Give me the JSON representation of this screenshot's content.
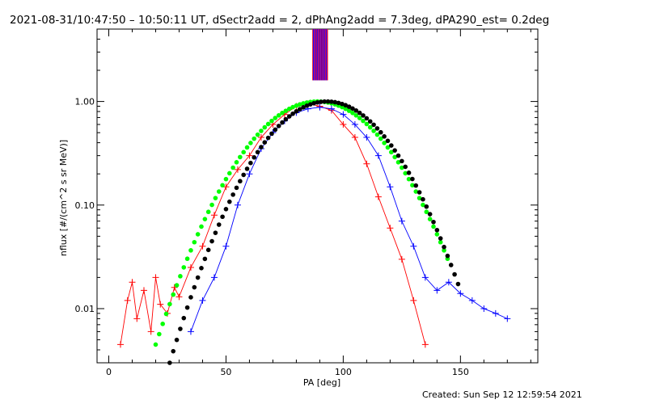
{
  "chart_data": {
    "type": "scatter",
    "title": "2021-08-31/10:47:50 – 10:50:11 UT, dSectr2add = 2, dPhAng2add = 7.3deg, dPA290_est=  0.2deg",
    "xlabel": "PA [deg]",
    "ylabel": "nflux [#/(cm^2 s sr MeV)]",
    "xlim": [
      -5,
      183
    ],
    "ylim": [
      0.003,
      5.0
    ],
    "yscale": "log",
    "xticks": [
      0,
      50,
      100,
      150
    ],
    "xtick_labels": [
      "0",
      "50",
      "100",
      "150"
    ],
    "yticks": [
      0.01,
      0.1,
      1.0
    ],
    "ytick_labels": [
      "0.01",
      "0.10",
      "1.00"
    ],
    "footer": "Created: Sun Sep 12 12:59:54 2021",
    "colors": {
      "red": "#ff0000",
      "blue": "#0000ff",
      "green": "#00ff00",
      "black": "#000000",
      "purple": "#8000c0"
    },
    "fit_curves": [
      {
        "name": "",
        "color": "#00ff00",
        "marker": "dot",
        "peak_pa": 89,
        "peak_value": 1.0,
        "pa_range": [
          20,
          145
        ],
        "edge_value": 0.0045
      },
      {
        "name": "",
        "color": "#000000",
        "marker": "dot",
        "peak_pa": 93,
        "peak_value": 1.0,
        "pa_range": [
          26,
          150
        ],
        "edge_value": 0.003
      }
    ],
    "series": [
      {
        "name": "",
        "color": "#ff0000",
        "marker": "+",
        "x": [
          5,
          8,
          10,
          12,
          15,
          18,
          20,
          22,
          25,
          28,
          30,
          35,
          40,
          45,
          50,
          55,
          60,
          65,
          70,
          75,
          80,
          85,
          90,
          95,
          100,
          105,
          110,
          115,
          120,
          125,
          130,
          135
        ],
        "y": [
          0.0045,
          0.012,
          0.018,
          0.008,
          0.015,
          0.006,
          0.02,
          0.011,
          0.009,
          0.016,
          0.013,
          0.025,
          0.04,
          0.08,
          0.15,
          0.22,
          0.3,
          0.45,
          0.6,
          0.75,
          0.9,
          0.95,
          0.9,
          0.82,
          0.6,
          0.45,
          0.25,
          0.12,
          0.06,
          0.03,
          0.012,
          0.0045
        ]
      },
      {
        "name": "",
        "color": "#0000ff",
        "marker": "+",
        "x": [
          35,
          40,
          45,
          50,
          55,
          60,
          65,
          70,
          75,
          80,
          85,
          90,
          95,
          100,
          105,
          110,
          115,
          120,
          125,
          130,
          135,
          140,
          145,
          150,
          155,
          160,
          165,
          170
        ],
        "y": [
          0.006,
          0.012,
          0.02,
          0.04,
          0.1,
          0.2,
          0.35,
          0.5,
          0.65,
          0.78,
          0.85,
          0.88,
          0.85,
          0.75,
          0.6,
          0.45,
          0.3,
          0.15,
          0.07,
          0.04,
          0.02,
          0.015,
          0.018,
          0.014,
          0.012,
          0.01,
          0.009,
          0.008
        ]
      }
    ]
  }
}
